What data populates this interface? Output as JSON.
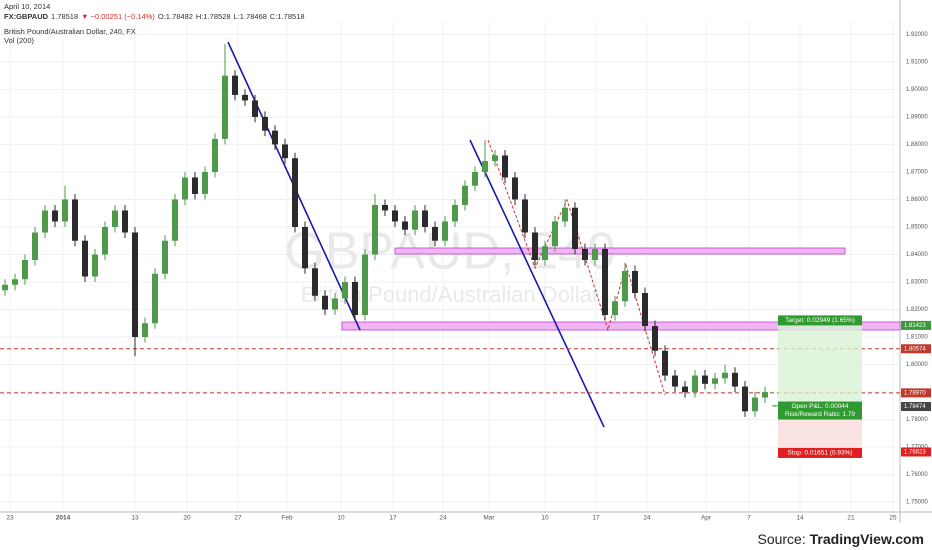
{
  "chart_data": {
    "type": "candlestick",
    "date": "April 10, 2014",
    "symbol": "FX:GBPAUD",
    "last": "1.78518",
    "change": "▼ −0.00251 (−0.14%)",
    "ohlc_text": [
      "O:1.78482",
      "H:1.78528",
      "L:1.78468",
      "C:1.78518"
    ],
    "title": "British Pound/Australian Dollar, 240, FX",
    "indicator": "Vol (200)",
    "watermark": "GBPAUD, 240",
    "watermark_sub": "British Pound/Australian Dollar",
    "source_prefix": "Source: ",
    "source": "TradingView.com",
    "up_color": "#4f9a4a",
    "down_color": "#2b2b2b",
    "grid": true,
    "xlim": [
      0,
      90
    ],
    "ylim": [
      1.7435,
      1.9245
    ],
    "xticks": [
      {
        "value": 1,
        "label": "23"
      },
      {
        "value": 6.3,
        "label": "2014"
      },
      {
        "value": 13.5,
        "label": "13"
      },
      {
        "value": 18.7,
        "label": "20"
      },
      {
        "value": 23.8,
        "label": "27"
      },
      {
        "value": 28.7,
        "label": "Feb"
      },
      {
        "value": 34.1,
        "label": "10"
      },
      {
        "value": 39.3,
        "label": "17"
      },
      {
        "value": 44.3,
        "label": "24"
      },
      {
        "value": 48.9,
        "label": "Mar"
      },
      {
        "value": 54.5,
        "label": "10"
      },
      {
        "value": 59.6,
        "label": "17"
      },
      {
        "value": 64.7,
        "label": "24"
      },
      {
        "value": 70.6,
        "label": "Apr"
      },
      {
        "value": 74.9,
        "label": "7"
      },
      {
        "value": 80,
        "label": "14"
      },
      {
        "value": 85.1,
        "label": "21"
      },
      {
        "value": 89.3,
        "label": "25"
      }
    ],
    "yticks": [
      {
        "value": 1.75,
        "label": "1.75000"
      },
      {
        "value": 1.76,
        "label": "1.76000"
      },
      {
        "value": 1.77,
        "label": "1.77000"
      },
      {
        "value": 1.78,
        "label": "1.78000"
      },
      {
        "value": 1.79,
        "label": "1.79000"
      },
      {
        "value": 1.8,
        "label": "1.80000"
      },
      {
        "value": 1.81,
        "label": "1.81000"
      },
      {
        "value": 1.82,
        "label": "1.82000"
      },
      {
        "value": 1.83,
        "label": "1.83000"
      },
      {
        "value": 1.84,
        "label": "1.84000"
      },
      {
        "value": 1.85,
        "label": "1.85000"
      },
      {
        "value": 1.86,
        "label": "1.86000"
      },
      {
        "value": 1.87,
        "label": "1.87000"
      },
      {
        "value": 1.88,
        "label": "1.88000"
      },
      {
        "value": 1.89,
        "label": "1.89000"
      },
      {
        "value": 1.9,
        "label": "1.90000"
      },
      {
        "value": 1.91,
        "label": "1.91000"
      },
      {
        "value": 1.92,
        "label": "1.92000"
      }
    ],
    "open": [
      1.827,
      1.829,
      1.831,
      1.838,
      1.848,
      1.856,
      1.852,
      1.86,
      1.845,
      1.832,
      1.84,
      1.85,
      1.856,
      1.848,
      1.81,
      1.815,
      1.833,
      1.845,
      1.86,
      1.868,
      1.862,
      1.87,
      1.882,
      1.905,
      1.898,
      1.896,
      1.89,
      1.885,
      1.88,
      1.875,
      1.85,
      1.835,
      1.825,
      1.82,
      1.824,
      1.83,
      1.818,
      1.84,
      1.858,
      1.856,
      1.852,
      1.849,
      1.856,
      1.85,
      1.845,
      1.852,
      1.858,
      1.865,
      1.87,
      1.874,
      1.876,
      1.868,
      1.86,
      1.848,
      1.838,
      1.843,
      1.852,
      1.857,
      1.842,
      1.838,
      1.842,
      1.818,
      1.823,
      1.834,
      1.826,
      1.814,
      1.805,
      1.796,
      1.792,
      1.79,
      1.796,
      1.793,
      1.795,
      1.797,
      1.792,
      1.783,
      1.788,
      1.78482
    ],
    "high": [
      1.831,
      1.833,
      1.84,
      1.85,
      1.858,
      1.858,
      1.865,
      1.862,
      1.847,
      1.842,
      1.852,
      1.858,
      1.858,
      1.85,
      1.817,
      1.835,
      1.847,
      1.862,
      1.87,
      1.87,
      1.872,
      1.884,
      1.9165,
      1.907,
      1.9,
      1.898,
      1.892,
      1.887,
      1.882,
      1.877,
      1.852,
      1.837,
      1.827,
      1.826,
      1.832,
      1.832,
      1.842,
      1.862,
      1.86,
      1.858,
      1.854,
      1.858,
      1.858,
      1.852,
      1.854,
      1.86,
      1.867,
      1.872,
      1.8815,
      1.878,
      1.878,
      1.87,
      1.862,
      1.85,
      1.845,
      1.854,
      1.86,
      1.859,
      1.844,
      1.844,
      1.844,
      1.825,
      1.837,
      1.836,
      1.828,
      1.816,
      1.807,
      1.798,
      1.794,
      1.798,
      1.798,
      1.797,
      1.8,
      1.799,
      1.794,
      1.79,
      1.792,
      1.78528
    ],
    "low": [
      1.825,
      1.827,
      1.829,
      1.836,
      1.846,
      1.85,
      1.85,
      1.843,
      1.83,
      1.83,
      1.838,
      1.848,
      1.846,
      1.803,
      1.808,
      1.813,
      1.831,
      1.843,
      1.858,
      1.86,
      1.86,
      1.868,
      1.88,
      1.896,
      1.894,
      1.888,
      1.883,
      1.878,
      1.873,
      1.848,
      1.833,
      1.823,
      1.818,
      1.818,
      1.822,
      1.816,
      1.816,
      1.838,
      1.854,
      1.85,
      1.847,
      1.847,
      1.848,
      1.843,
      1.843,
      1.85,
      1.856,
      1.863,
      1.868,
      1.872,
      1.866,
      1.858,
      1.846,
      1.836,
      1.836,
      1.841,
      1.85,
      1.84,
      1.836,
      1.836,
      1.816,
      1.816,
      1.821,
      1.824,
      1.812,
      1.803,
      1.794,
      1.79,
      1.788,
      1.788,
      1.791,
      1.791,
      1.793,
      1.79,
      1.781,
      1.781,
      1.786,
      1.78468
    ],
    "close": [
      1.829,
      1.831,
      1.838,
      1.848,
      1.856,
      1.852,
      1.86,
      1.845,
      1.832,
      1.84,
      1.85,
      1.856,
      1.848,
      1.81,
      1.815,
      1.833,
      1.845,
      1.86,
      1.868,
      1.862,
      1.87,
      1.882,
      1.905,
      1.898,
      1.896,
      1.89,
      1.885,
      1.88,
      1.875,
      1.85,
      1.835,
      1.825,
      1.82,
      1.824,
      1.83,
      1.818,
      1.84,
      1.858,
      1.856,
      1.852,
      1.849,
      1.856,
      1.85,
      1.845,
      1.852,
      1.858,
      1.865,
      1.87,
      1.874,
      1.876,
      1.868,
      1.86,
      1.848,
      1.838,
      1.843,
      1.852,
      1.857,
      1.842,
      1.838,
      1.842,
      1.818,
      1.823,
      1.834,
      1.826,
      1.814,
      1.805,
      1.796,
      1.792,
      1.79,
      1.796,
      1.793,
      1.795,
      1.797,
      1.792,
      1.783,
      1.788,
      1.79,
      1.78518
    ],
    "hlines": [
      {
        "value": 1.80574,
        "color": "#c0392b"
      },
      {
        "value": 1.7897,
        "color": "#c0392b"
      }
    ],
    "position": {
      "start": 77.8,
      "end": 86.2,
      "entry": 1.78474,
      "target": 1.81423,
      "stop": 1.76823,
      "target_label": "Target: 0.02949 (1.65%)",
      "pnl_label": "Open P&L: 0.00044",
      "rr_label": "Risk/Reward Ratio: 1.79",
      "stop_label": "Stop: 0.01651 (0.93%)"
    },
    "price_labels": [
      {
        "value": 1.81423,
        "label": "1.81423",
        "color": "#3a9b3a"
      },
      {
        "value": 1.80574,
        "label": "1.80574",
        "color": "#c0392b"
      },
      {
        "value": 1.7897,
        "label": "1.78970",
        "color": "#c0392b"
      },
      {
        "value": 1.78474,
        "label": "1.78474",
        "color": "#444444"
      },
      {
        "value": 1.76823,
        "label": "1.76823",
        "color": "#e02020"
      }
    ]
  }
}
